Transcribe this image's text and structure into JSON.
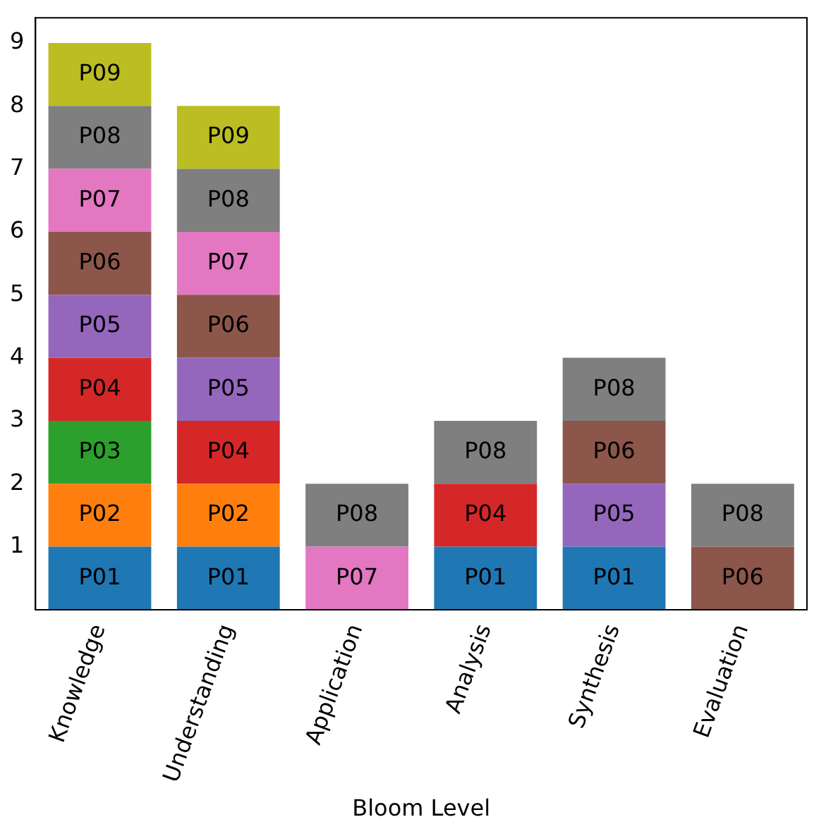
{
  "chart_data": {
    "type": "bar",
    "stacked": true,
    "xlabel": "Bloom Level",
    "categories": [
      "Knowledge",
      "Understanding",
      "Application",
      "Analysis",
      "Synthesis",
      "Evaluation"
    ],
    "ylim": [
      0,
      9.4
    ],
    "yticks": [
      1,
      2,
      3,
      4,
      5,
      6,
      7,
      8,
      9
    ],
    "grid": false,
    "legend": false,
    "series": [
      {
        "name": "P01",
        "color": "#1f77b4",
        "values": [
          1,
          1,
          null,
          1,
          1,
          null
        ]
      },
      {
        "name": "P02",
        "color": "#ff7f0e",
        "values": [
          1,
          1,
          null,
          null,
          null,
          null
        ]
      },
      {
        "name": "P03",
        "color": "#2ca02c",
        "values": [
          1,
          null,
          null,
          null,
          null,
          null
        ]
      },
      {
        "name": "P04",
        "color": "#d62728",
        "values": [
          1,
          1,
          null,
          1,
          null,
          null
        ]
      },
      {
        "name": "P05",
        "color": "#9467bd",
        "values": [
          1,
          1,
          null,
          null,
          1,
          null
        ]
      },
      {
        "name": "P06",
        "color": "#8c564b",
        "values": [
          1,
          1,
          null,
          null,
          1,
          1
        ]
      },
      {
        "name": "P07",
        "color": "#e377c2",
        "values": [
          1,
          1,
          1,
          null,
          null,
          null
        ]
      },
      {
        "name": "P08",
        "color": "#7f7f7f",
        "values": [
          1,
          1,
          1,
          1,
          1,
          1
        ]
      },
      {
        "name": "P09",
        "color": "#bcbd22",
        "values": [
          1,
          1,
          null,
          null,
          null,
          null
        ]
      }
    ]
  }
}
